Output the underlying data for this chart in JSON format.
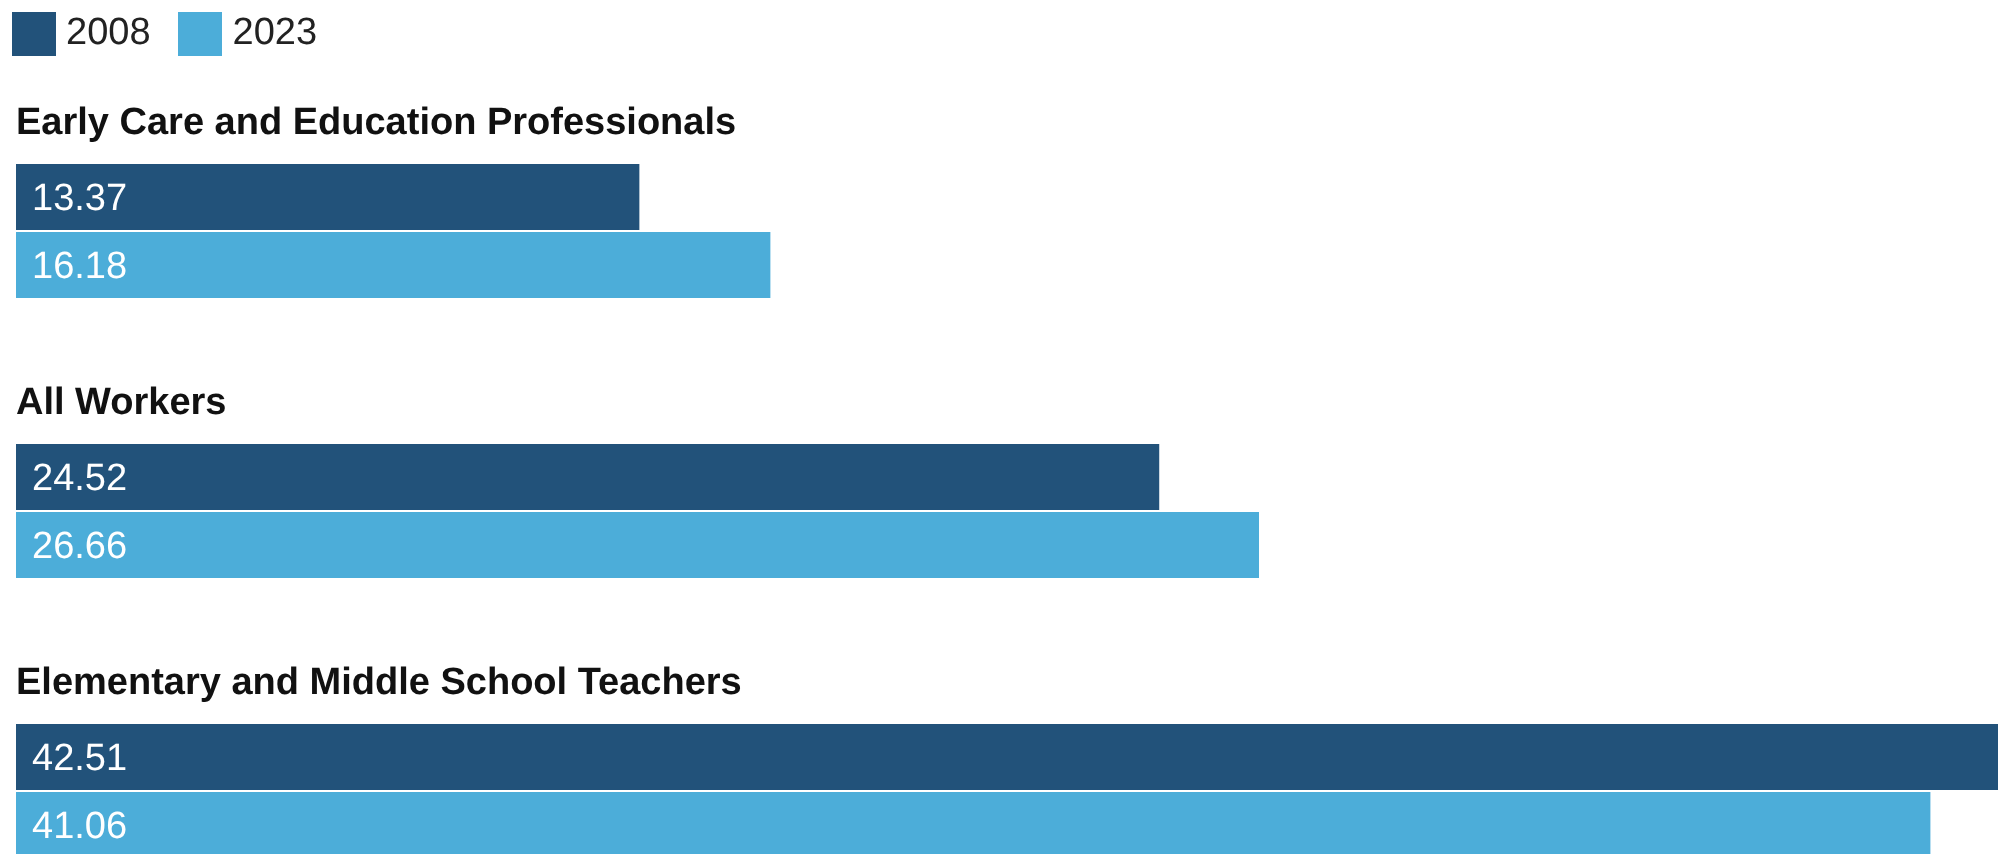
{
  "chart_data": {
    "type": "bar",
    "orientation": "horizontal",
    "categories": [
      "Early Care and Education Professionals",
      "All Workers",
      "Elementary and Middle School Teachers"
    ],
    "series": [
      {
        "name": "2008",
        "color": "#22527a",
        "values": [
          13.37,
          24.52,
          42.51
        ]
      },
      {
        "name": "2023",
        "color": "#4cadd9",
        "values": [
          16.18,
          26.66,
          41.06
        ]
      }
    ],
    "data_labels": true,
    "legend": "top left"
  }
}
